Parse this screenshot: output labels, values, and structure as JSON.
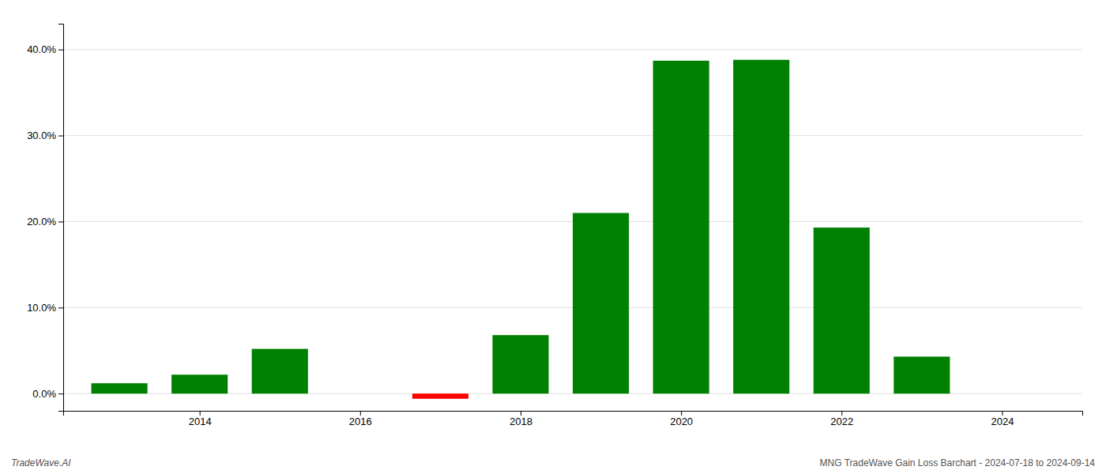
{
  "chart_data": {
    "type": "bar",
    "x": [
      2013,
      2014,
      2015,
      2016,
      2017,
      2018,
      2019,
      2020,
      2021,
      2022,
      2023
    ],
    "values": [
      1.2,
      2.2,
      5.2,
      0.0,
      -0.6,
      6.8,
      21.0,
      38.7,
      38.8,
      19.3,
      4.3
    ],
    "colors": [
      "#008000",
      "#008000",
      "#008000",
      "#008000",
      "#ff0000",
      "#008000",
      "#008000",
      "#008000",
      "#008000",
      "#008000",
      "#008000"
    ],
    "xlim": [
      2012.3,
      2025.0
    ],
    "xticks": [
      2014,
      2016,
      2018,
      2020,
      2022,
      2024
    ],
    "ylim": [
      -2,
      43
    ],
    "yticks": [
      {
        "value": 0.0,
        "label": "0.0%"
      },
      {
        "value": 10.0,
        "label": "10.0%"
      },
      {
        "value": 20.0,
        "label": "20.0%"
      },
      {
        "value": 30.0,
        "label": "30.0%"
      },
      {
        "value": 40.0,
        "label": "40.0%"
      }
    ],
    "grid": true,
    "annotations": [
      "TradeWave.AI",
      "MNG TradeWave Gain Loss Barchart - 2024-07-18 to 2024-09-14"
    ]
  }
}
